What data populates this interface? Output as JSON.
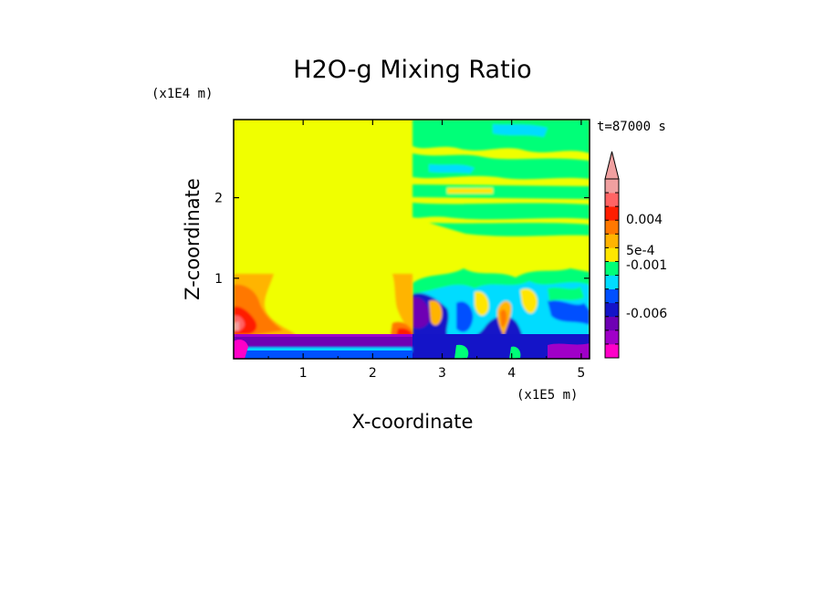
{
  "chart_data": {
    "type": "heatmap",
    "title": "H2O-g Mixing Ratio",
    "xlabel": "X-coordinate",
    "ylabel": "Z-coordinate",
    "x_scale_label": "(x1E5 m)",
    "y_scale_label": "(x1E4 m)",
    "time_label": "t=87000 s",
    "x_ticks": [
      "1",
      "2",
      "3",
      "4",
      "5"
    ],
    "y_ticks": [
      "1",
      "2"
    ],
    "xlim": [
      0,
      5.12
    ],
    "ylim": [
      0,
      2.97
    ],
    "colorbar": {
      "tick_labels": [
        "0.004",
        "5e-4",
        "-0.001",
        "-0.006"
      ],
      "colors": [
        "#ff00c8",
        "#a000c8",
        "#6e00b4",
        "#1414c8",
        "#0050ff",
        "#00dcff",
        "#00ff78",
        "#ffe600",
        "#ffb400",
        "#ff7800",
        "#ff1e00",
        "#ff6464",
        "#f0a0a0"
      ]
    },
    "background_color": "#f0ff00"
  }
}
